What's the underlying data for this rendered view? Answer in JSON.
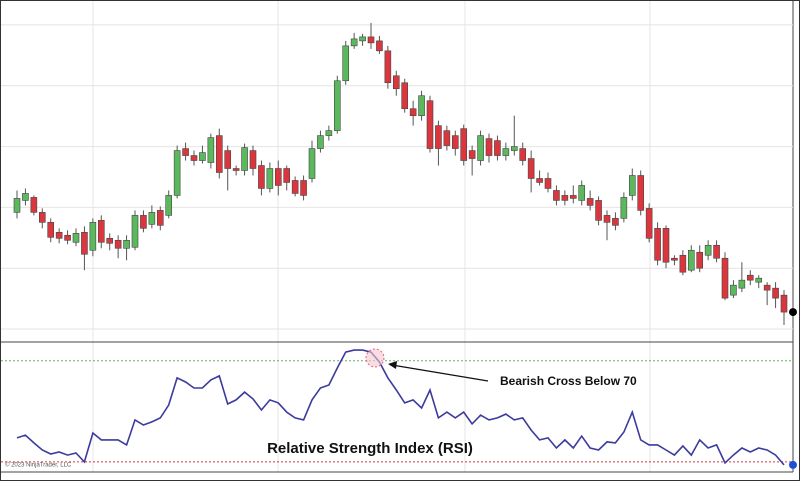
{
  "chart_data": [
    {
      "type": "candlestick",
      "up_color": "#5cb85c",
      "down_color": "#d9373d",
      "wick_color": "#555555",
      "ylim": [
        0,
        340
      ],
      "yticks": [
        11,
        72,
        133,
        194,
        255,
        316
      ],
      "grid": true,
      "open": [
        128,
        140,
        143,
        128,
        118,
        108,
        105,
        98,
        108,
        90,
        120,
        102,
        100,
        92,
        93,
        125,
        116,
        130,
        125,
        145,
        192,
        185,
        180,
        178,
        205,
        190,
        172,
        170,
        190,
        175,
        152,
        172,
        172,
        160,
        160,
        162,
        192,
        205,
        210,
        260,
        295,
        300,
        304,
        300,
        290,
        265,
        258,
        232,
        225,
        240,
        215,
        210,
        205,
        212,
        190,
        180,
        202,
        200,
        185,
        190,
        192,
        182,
        162,
        162,
        150,
        145,
        145,
        140,
        142,
        140,
        125,
        122,
        122,
        145,
        165,
        132,
        112,
        112,
        82,
        85,
        70,
        88,
        85,
        95,
        82,
        45,
        52,
        65,
        58,
        55,
        52,
        45
      ],
      "close": [
        142,
        147,
        128,
        118,
        103,
        102,
        100,
        107,
        86,
        118,
        98,
        97,
        92,
        100,
        125,
        112,
        128,
        115,
        145,
        190,
        185,
        180,
        188,
        203,
        168,
        172,
        170,
        193,
        172,
        152,
        172,
        155,
        158,
        147,
        145,
        192,
        205,
        210,
        260,
        295,
        302,
        304,
        298,
        290,
        258,
        252,
        232,
        225,
        245,
        192,
        192,
        195,
        192,
        180,
        182,
        205,
        185,
        185,
        192,
        194,
        180,
        162,
        158,
        152,
        140,
        140,
        142,
        155,
        135,
        120,
        118,
        115,
        143,
        165,
        130,
        102,
        80,
        78,
        80,
        68,
        90,
        72,
        95,
        82,
        42,
        55,
        60,
        60,
        62,
        50,
        42,
        28
      ],
      "high": [
        150,
        152,
        145,
        132,
        122,
        112,
        110,
        112,
        114,
        122,
        125,
        107,
        105,
        105,
        130,
        130,
        135,
        134,
        150,
        195,
        198,
        190,
        195,
        207,
        212,
        195,
        175,
        197,
        195,
        180,
        178,
        180,
        175,
        164,
        165,
        200,
        210,
        215,
        265,
        300,
        308,
        307,
        318,
        305,
        295,
        270,
        262,
        240,
        250,
        245,
        220,
        215,
        210,
        216,
        195,
        210,
        207,
        205,
        198,
        225,
        198,
        190,
        170,
        168,
        155,
        150,
        155,
        160,
        150,
        144,
        130,
        128,
        148,
        172,
        170,
        137,
        118,
        115,
        85,
        90,
        95,
        95,
        100,
        100,
        88,
        60,
        78,
        70,
        65,
        58,
        58,
        50
      ],
      "low": [
        122,
        135,
        125,
        112,
        98,
        97,
        96,
        94,
        70,
        84,
        92,
        90,
        82,
        80,
        90,
        108,
        112,
        110,
        122,
        142,
        180,
        175,
        177,
        172,
        162,
        150,
        165,
        165,
        165,
        145,
        148,
        145,
        150,
        144,
        140,
        158,
        188,
        200,
        207,
        256,
        292,
        295,
        292,
        287,
        252,
        245,
        228,
        215,
        220,
        188,
        175,
        190,
        185,
        175,
        165,
        175,
        178,
        180,
        180,
        185,
        175,
        148,
        155,
        148,
        135,
        135,
        137,
        135,
        130,
        115,
        100,
        110,
        118,
        140,
        125,
        98,
        75,
        72,
        75,
        65,
        68,
        68,
        80,
        78,
        40,
        42,
        48,
        55,
        52,
        35,
        32,
        15
      ]
    },
    {
      "type": "line",
      "title": "Relative Strength Index (RSI)",
      "color": "#3b3b9e",
      "ylim": [
        26,
        77
      ],
      "levels": [
        {
          "value": 70,
          "color": "#5cb85c"
        },
        {
          "value": 30,
          "color": "#d9373d"
        }
      ],
      "values": [
        39.5,
        40.6,
        37.5,
        34.7,
        33.1,
        33.9,
        32.7,
        33.5,
        30.0,
        41.4,
        38.7,
        38.7,
        38.7,
        36.7,
        46.6,
        44.6,
        45.8,
        47.4,
        52.5,
        63.2,
        61.6,
        59.2,
        59.2,
        62.4,
        64.0,
        52.9,
        54.5,
        57.6,
        54.9,
        50.5,
        54.5,
        53.3,
        49.7,
        47.4,
        46.6,
        54.5,
        59.2,
        60.4,
        67.1,
        73.4,
        74.2,
        74.2,
        73.4,
        69.5,
        63.2,
        58.4,
        53.3,
        54.5,
        51.3,
        58.4,
        47.4,
        49.7,
        47.4,
        49.7,
        45.0,
        48.5,
        46.6,
        47.4,
        48.9,
        46.6,
        47.4,
        42.6,
        38.7,
        39.5,
        35.5,
        38.7,
        35.5,
        40.2,
        35.5,
        34.7,
        37.9,
        37.5,
        41.8,
        49.7,
        38.7,
        36.7,
        36.7,
        34.7,
        32.7,
        36.3,
        32.7,
        38.7,
        35.5,
        36.7,
        29.6,
        32.7,
        35.5,
        33.9,
        35.5,
        34.7,
        32.7,
        28.8
      ],
      "annotation": "Bearish Cross Below 70"
    }
  ],
  "footer": "© 2023 NinjaTrader, LLC"
}
